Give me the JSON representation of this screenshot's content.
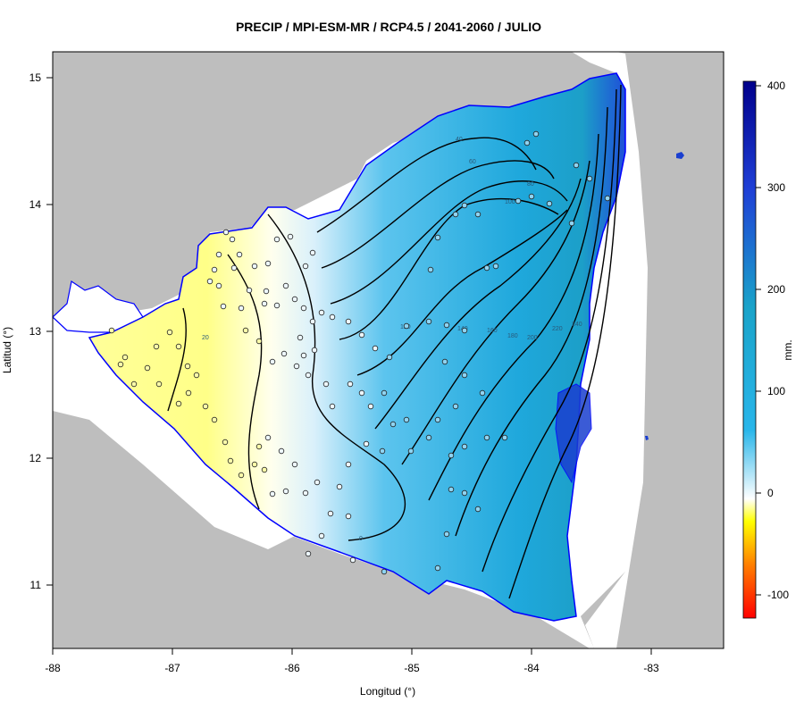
{
  "title": "PRECIP / MPI-ESM-MR / RCP4.5 / 2041-2060 / JULIO",
  "x_axis": {
    "label": "Longitud (°)",
    "ticks": [
      "-88",
      "-87",
      "-86",
      "-85",
      "-84",
      "-83"
    ]
  },
  "y_axis": {
    "label": "Latitud (°)",
    "ticks": [
      "15",
      "14",
      "13",
      "12",
      "11"
    ]
  },
  "colorbar": {
    "unit": "mm.",
    "ticks": [
      "400",
      "300",
      "200",
      "100",
      "0",
      "-100"
    ],
    "colors": [
      "#00008b",
      "#1f3fd6",
      "#1aa3c9",
      "#29b6ea",
      "#ffffff",
      "#ffff66",
      "#ff0000"
    ]
  },
  "contour_labels": [
    "40",
    "60",
    "80",
    "100",
    "120",
    "140",
    "160",
    "180",
    "200",
    "220",
    "240",
    "20",
    "0"
  ],
  "colors": {
    "land_outside": "#bebebe",
    "sea": "#ffffff",
    "border": "#0000ff"
  }
}
